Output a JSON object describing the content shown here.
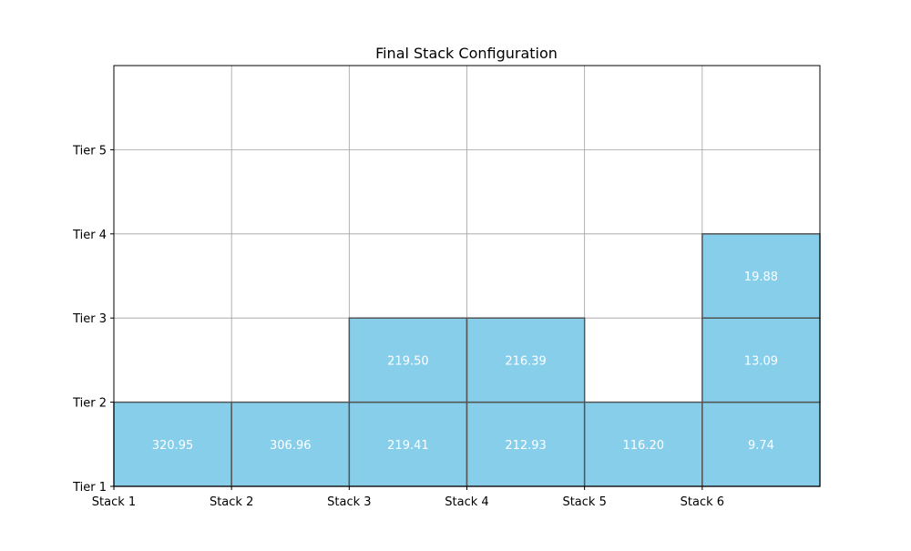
{
  "chart_data": {
    "type": "stacked-block grid",
    "title": "Final Stack Configuration",
    "x_tick_labels": [
      "Stack 1",
      "Stack 2",
      "Stack 3",
      "Stack 4",
      "Stack 5",
      "Stack 6"
    ],
    "y_tick_labels": [
      "Tier 1",
      "Tier 2",
      "Tier 3",
      "Tier 4",
      "Tier 5"
    ],
    "xlim": [
      0,
      6
    ],
    "ylim": [
      0,
      5
    ],
    "grid": true,
    "block_color": "#87CEEB",
    "label_color": "#ffffff",
    "stacks": [
      {
        "stack": "Stack 1",
        "containers": [
          320.95
        ]
      },
      {
        "stack": "Stack 2",
        "containers": [
          306.96
        ]
      },
      {
        "stack": "Stack 3",
        "containers": [
          219.41,
          219.5
        ]
      },
      {
        "stack": "Stack 4",
        "containers": [
          212.93,
          216.39
        ]
      },
      {
        "stack": "Stack 5",
        "containers": [
          116.2
        ]
      },
      {
        "stack": "Stack 6",
        "containers": [
          9.74,
          13.09,
          19.88
        ]
      }
    ]
  }
}
